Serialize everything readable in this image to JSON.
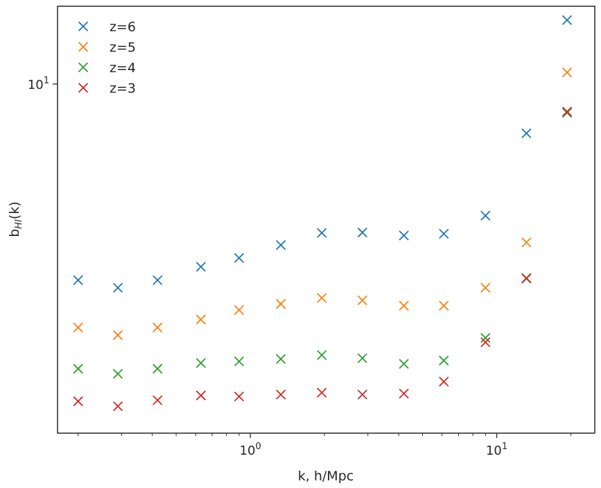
{
  "chart_data": {
    "type": "scatter",
    "xlabel": "k, h/Mpc",
    "ylabel": "b",
    "ylabel_subscript": "HI",
    "ylabel_suffix": "(k)",
    "xscale": "log",
    "yscale": "log",
    "xlim": [
      0.165,
      25.0
    ],
    "ylim": [
      1.72,
      14.8
    ],
    "grid": false,
    "legend_position": "top-left",
    "x_major_ticks": [
      {
        "value": 1,
        "base": "10",
        "exp": "0"
      },
      {
        "value": 10,
        "base": "10",
        "exp": "1"
      }
    ],
    "y_major_ticks": [
      {
        "value": 10,
        "base": "10",
        "exp": "1"
      }
    ],
    "x_minor_ticks": [
      0.2,
      0.3,
      0.4,
      0.5,
      0.6,
      0.7,
      0.8,
      0.9,
      2,
      3,
      4,
      5,
      6,
      7,
      8,
      9,
      20
    ],
    "x": [
      0.2,
      0.29,
      0.42,
      0.63,
      0.9,
      1.33,
      1.95,
      2.85,
      4.2,
      6.1,
      9.0,
      13.2,
      19.3
    ],
    "series": [
      {
        "name": "z=6",
        "color": "#1f77b4",
        "values": [
          3.72,
          3.58,
          3.72,
          3.98,
          4.16,
          4.44,
          4.72,
          4.73,
          4.66,
          4.7,
          5.15,
          7.8,
          13.8
        ]
      },
      {
        "name": "z=5",
        "color": "#ff7f0e",
        "values": [
          2.93,
          2.82,
          2.93,
          3.05,
          3.2,
          3.3,
          3.4,
          3.36,
          3.27,
          3.27,
          3.58,
          4.5,
          10.6
        ]
      },
      {
        "name": "z=4",
        "color": "#2ca02c",
        "values": [
          2.38,
          2.32,
          2.38,
          2.45,
          2.47,
          2.5,
          2.55,
          2.51,
          2.44,
          2.48,
          2.78,
          3.76,
          8.65
        ]
      },
      {
        "name": "z=3",
        "color": "#d62728",
        "values": [
          2.02,
          1.97,
          2.03,
          2.08,
          2.07,
          2.09,
          2.11,
          2.09,
          2.1,
          2.23,
          2.72,
          3.75,
          8.7
        ]
      }
    ]
  }
}
